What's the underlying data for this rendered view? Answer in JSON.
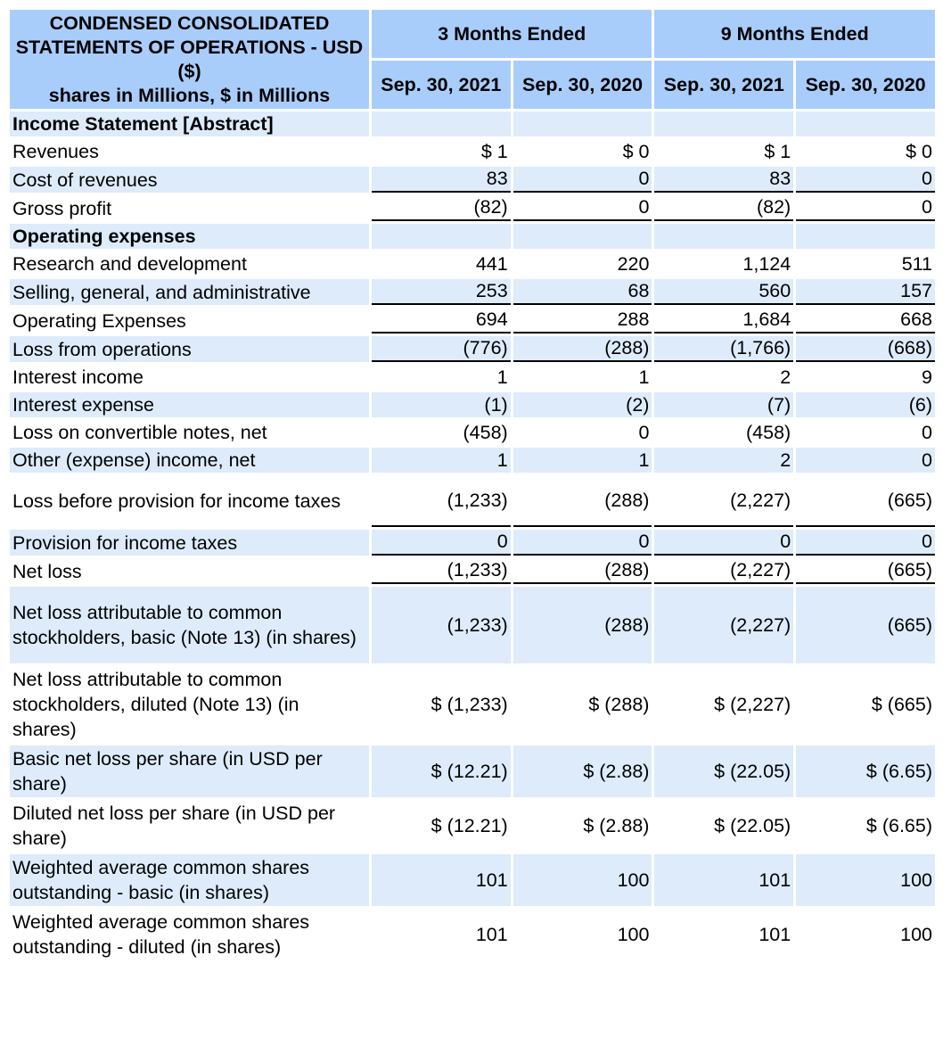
{
  "header": {
    "title": "CONDENSED CONSOLIDATED STATEMENTS OF OPERATIONS - USD ($)",
    "units": "shares in Millions, $ in Millions",
    "groups": [
      "3 Months Ended",
      "9 Months Ended"
    ],
    "periods": [
      "Sep. 30, 2021",
      "Sep. 30, 2020",
      "Sep. 30, 2021",
      "Sep. 30, 2020"
    ]
  },
  "rows": [
    {
      "label": "Income Statement [Abstract]",
      "values": [
        "",
        "",
        "",
        ""
      ]
    },
    {
      "label": "Revenues",
      "values": [
        "$ 1",
        "$ 0",
        "$ 1",
        "$ 0"
      ]
    },
    {
      "label": "Cost of revenues",
      "values": [
        "83",
        "0",
        "83",
        "0"
      ]
    },
    {
      "label": "Gross profit",
      "values": [
        "(82)",
        "0",
        "(82)",
        "0"
      ]
    },
    {
      "label": "Operating expenses",
      "values": [
        "",
        "",
        "",
        ""
      ]
    },
    {
      "label": "Research and development",
      "values": [
        "441",
        "220",
        "1,124",
        "511"
      ]
    },
    {
      "label": "Selling, general, and administrative",
      "values": [
        "253",
        "68",
        "560",
        "157"
      ]
    },
    {
      "label": "Operating Expenses",
      "values": [
        "694",
        "288",
        "1,684",
        "668"
      ]
    },
    {
      "label": "Loss from operations",
      "values": [
        "(776)",
        "(288)",
        "(1,766)",
        "(668)"
      ]
    },
    {
      "label": "Interest income",
      "values": [
        "1",
        "1",
        "2",
        "9"
      ]
    },
    {
      "label": "Interest expense",
      "values": [
        "(1)",
        "(2)",
        "(7)",
        "(6)"
      ]
    },
    {
      "label": "Loss on convertible notes, net",
      "values": [
        "(458)",
        "0",
        "(458)",
        "0"
      ]
    },
    {
      "label": "Other (expense) income, net",
      "values": [
        "1",
        "1",
        "2",
        "0"
      ]
    },
    {
      "label": "Loss before provision for income taxes",
      "values": [
        "(1,233)",
        "(288)",
        "(2,227)",
        "(665)"
      ]
    },
    {
      "label": "Provision for income taxes",
      "values": [
        "0",
        "0",
        "0",
        "0"
      ]
    },
    {
      "label": "Net loss",
      "values": [
        "(1,233)",
        "(288)",
        "(2,227)",
        "(665)"
      ]
    },
    {
      "label": "Net loss attributable to common stockholders, basic (Note 13) (in shares)",
      "values": [
        "(1,233)",
        "(288)",
        "(2,227)",
        "(665)"
      ]
    },
    {
      "label": "Net loss attributable to common stockholders, diluted (Note 13) (in shares)",
      "values": [
        "$ (1,233)",
        "$ (288)",
        "$ (2,227)",
        "$ (665)"
      ]
    },
    {
      "label": "Basic net loss per share (in USD per share)",
      "values": [
        "$ (12.21)",
        "$ (2.88)",
        "$ (22.05)",
        "$ (6.65)"
      ]
    },
    {
      "label": "Diluted net loss per share (in USD per share)",
      "values": [
        "$ (12.21)",
        "$ (2.88)",
        "$ (22.05)",
        "$ (6.65)"
      ]
    },
    {
      "label": "Weighted average common shares outstanding - basic (in shares)",
      "values": [
        "101",
        "100",
        "101",
        "100"
      ]
    },
    {
      "label": "Weighted average common shares outstanding - diluted (in shares)",
      "values": [
        "101",
        "100",
        "101",
        "100"
      ]
    }
  ],
  "colors": {
    "header_bg": "#a9cdfb",
    "stripe_bg": "#ddebfb",
    "row_bg": "#ffffff"
  }
}
